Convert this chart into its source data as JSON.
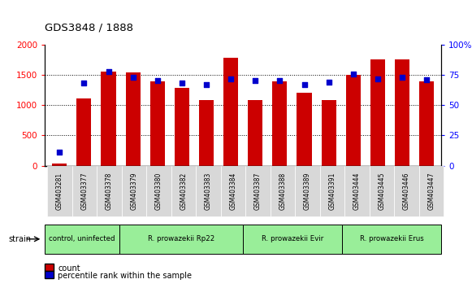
{
  "title": "GDS3848 / 1888",
  "samples": [
    "GSM403281",
    "GSM403377",
    "GSM403378",
    "GSM403379",
    "GSM403380",
    "GSM403382",
    "GSM403383",
    "GSM403384",
    "GSM403387",
    "GSM403388",
    "GSM403389",
    "GSM403391",
    "GSM403444",
    "GSM403445",
    "GSM403446",
    "GSM403447"
  ],
  "counts": [
    30,
    1110,
    1560,
    1540,
    1390,
    1280,
    1090,
    1780,
    1090,
    1390,
    1210,
    1090,
    1500,
    1760,
    1760,
    1390
  ],
  "percentiles": [
    11,
    68,
    78,
    73,
    70,
    68,
    67,
    72,
    70,
    70,
    67,
    69,
    76,
    72,
    73,
    71
  ],
  "group_defs": [
    {
      "label": "control, uninfected",
      "start": 0,
      "end": 2
    },
    {
      "label": "R. prowazekii Rp22",
      "start": 3,
      "end": 7
    },
    {
      "label": "R. prowazekii Evir",
      "start": 8,
      "end": 11
    },
    {
      "label": "R. prowazekii Erus",
      "start": 12,
      "end": 15
    }
  ],
  "group_color": "#99ee99",
  "ylim_left": [
    0,
    2000
  ],
  "ylim_right": [
    0,
    100
  ],
  "yticks_left": [
    0,
    500,
    1000,
    1500,
    2000
  ],
  "ytick_labels_left": [
    "0",
    "500",
    "1000",
    "1500",
    "2000"
  ],
  "yticks_right": [
    0,
    25,
    50,
    75,
    100
  ],
  "ytick_labels_right": [
    "0",
    "25",
    "50",
    "75",
    "100%"
  ],
  "bar_color": "#cc0000",
  "dot_color": "#0000cc",
  "bg_color": "#ffffff",
  "strain_label": "strain",
  "legend_count": "count",
  "legend_pct": "percentile rank within the sample"
}
